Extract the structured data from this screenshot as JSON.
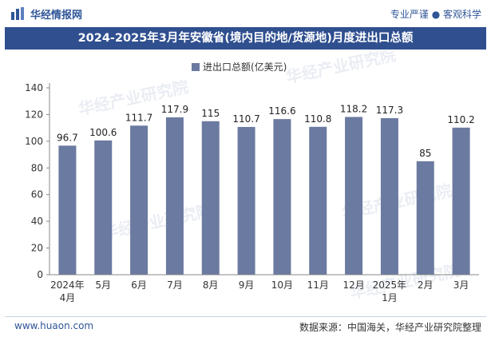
{
  "header": {
    "logo_text": "华经情报网",
    "slogan": "专业严谨 ● 客观科学"
  },
  "footer": {
    "website": "www.huaon.com",
    "source": "数据来源：中国海关，华经产业研究院整理"
  },
  "watermark": "华经产业研究院",
  "colors": {
    "bar": "#6b7aa0",
    "title_bg": "#2f4f8f",
    "brand": "#2f5597"
  },
  "chart_data": {
    "type": "bar",
    "title": "2024-2025年3月年安徽省(境内目的地/货源地)月度进出口总额",
    "categories": [
      "2024年4月",
      "5月",
      "6月",
      "7月",
      "8月",
      "9月",
      "10月",
      "11月",
      "12月",
      "2025年1月",
      "2月",
      "3月"
    ],
    "series": [
      {
        "name": "进出口总额(亿美元)",
        "values": [
          96.7,
          100.6,
          111.7,
          117.9,
          115,
          110.7,
          116.6,
          110.8,
          118.2,
          117.3,
          85,
          110.2
        ]
      }
    ],
    "value_labels": [
      "96.7",
      "100.6",
      "111.7",
      "117.9",
      "115",
      "110.7",
      "116.6",
      "110.8",
      "118.2",
      "117.3",
      "85",
      "110.2"
    ],
    "yticks": [
      "0",
      "20",
      "40",
      "60",
      "80",
      "100",
      "120",
      "140"
    ],
    "ylim": [
      0,
      140
    ],
    "xlabel": "",
    "ylabel": "",
    "legend_position": "top-center",
    "grid": false
  }
}
